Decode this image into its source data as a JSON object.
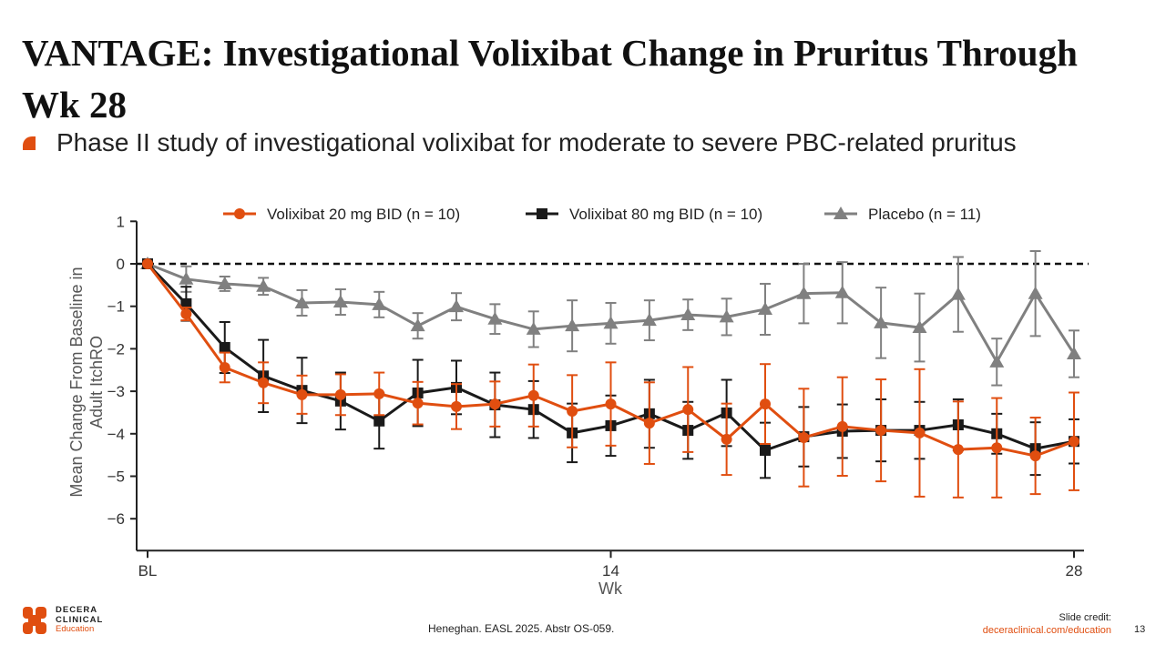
{
  "title": "VANTAGE: Investigational Volixibat Change in Pruritus Through Wk 28",
  "bullet": "Phase II study of investigational volixibat for moderate to severe PBC-related pruritus",
  "footer": {
    "citation": "Heneghan. EASL 2025. Abstr OS-059.",
    "credit_label": "Slide credit:",
    "credit_link": "deceraclinical.com/education",
    "page_number": "13",
    "logo": {
      "line1": "DECERA",
      "line2": "CLINICAL",
      "line3": "Education"
    }
  },
  "colors": {
    "accent": "#e04e10",
    "black": "#1a1a1a",
    "gray": "#808080"
  },
  "chart_data": {
    "type": "line",
    "title": "",
    "xlabel": "Wk",
    "ylabel": "Mean Change From Baseline in Adult ItchRO",
    "ylabel_lines": [
      "Mean Change From Baseline in",
      "Adult ItchRO"
    ],
    "ylim": [
      -6.75,
      1
    ],
    "yticks": [
      1,
      0,
      -1,
      -2,
      -3,
      -4,
      -5,
      -6
    ],
    "x_points": 25,
    "xticks": [
      {
        "index": 0,
        "label": "BL"
      },
      {
        "index": 12,
        "label": "14"
      },
      {
        "index": 24,
        "label": "28"
      }
    ],
    "reference_line": 0,
    "legend_position": "top",
    "series": [
      {
        "name": "Volixibat 20 mg BID (n = 10)",
        "color": "#e04e10",
        "marker": "circle",
        "values": [
          0,
          -1.18,
          -2.44,
          -2.8,
          -3.08,
          -3.08,
          -3.06,
          -3.28,
          -3.36,
          -3.3,
          -3.1,
          -3.47,
          -3.3,
          -3.75,
          -3.43,
          -4.13,
          -3.3,
          -4.09,
          -3.83,
          -3.92,
          -3.98,
          -4.37,
          -4.33,
          -4.52,
          -4.18
        ],
        "errors": [
          0,
          0.15,
          0.35,
          0.48,
          0.45,
          0.48,
          0.5,
          0.5,
          0.53,
          0.53,
          0.73,
          0.85,
          0.98,
          0.96,
          1.0,
          0.84,
          0.94,
          1.15,
          1.16,
          1.2,
          1.5,
          1.13,
          1.17,
          0.9,
          1.15
        ]
      },
      {
        "name": "Volixibat 80 mg BID (n = 10)",
        "color": "#1a1a1a",
        "marker": "square",
        "values": [
          0,
          -0.94,
          -1.97,
          -2.64,
          -2.98,
          -3.23,
          -3.7,
          -3.04,
          -2.91,
          -3.32,
          -3.43,
          -3.98,
          -3.81,
          -3.53,
          -3.92,
          -3.51,
          -4.39,
          -4.07,
          -3.94,
          -3.92,
          -3.92,
          -3.79,
          -4.0,
          -4.35,
          -4.18
        ],
        "errors": [
          0,
          0.4,
          0.6,
          0.85,
          0.77,
          0.67,
          0.65,
          0.78,
          0.63,
          0.76,
          0.67,
          0.69,
          0.71,
          0.8,
          0.67,
          0.78,
          0.65,
          0.7,
          0.63,
          0.73,
          0.67,
          0.6,
          0.47,
          0.62,
          0.52
        ]
      },
      {
        "name": "Placebo (n = 11)",
        "color": "#808080",
        "marker": "triangle",
        "values": [
          0,
          -0.36,
          -0.47,
          -0.53,
          -0.92,
          -0.9,
          -0.96,
          -1.46,
          -1.01,
          -1.3,
          -1.54,
          -1.46,
          -1.4,
          -1.33,
          -1.2,
          -1.25,
          -1.07,
          -0.7,
          -0.68,
          -1.39,
          -1.5,
          -0.72,
          -2.31,
          -0.7,
          -2.12
        ],
        "errors": [
          0,
          0.3,
          0.17,
          0.2,
          0.3,
          0.3,
          0.3,
          0.3,
          0.32,
          0.35,
          0.42,
          0.6,
          0.48,
          0.47,
          0.36,
          0.43,
          0.6,
          0.7,
          0.72,
          0.83,
          0.8,
          0.88,
          0.55,
          1.0,
          0.55
        ]
      }
    ]
  }
}
